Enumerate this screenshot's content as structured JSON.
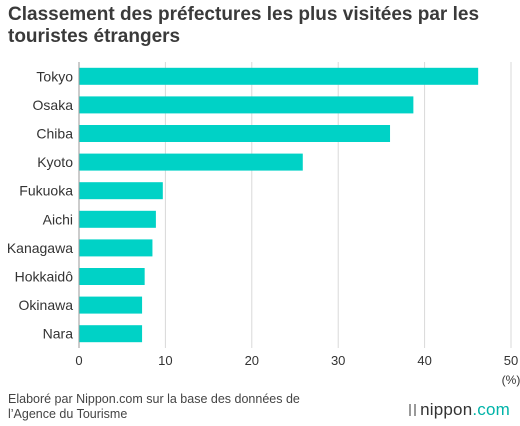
{
  "chart_data": {
    "type": "bar",
    "orientation": "horizontal",
    "title": "Classement des préfectures les plus visitées par les touristes étrangers",
    "categories": [
      "Tokyo",
      "Osaka",
      "Chiba",
      "Kyoto",
      "Fukuoka",
      "Aichi",
      "Kanagawa",
      "Hokkaidô",
      "Okinawa",
      "Nara"
    ],
    "values": [
      46.2,
      38.7,
      36.0,
      25.9,
      9.7,
      8.9,
      8.5,
      7.6,
      7.3,
      7.3
    ],
    "xlabel": "(%)",
    "ylabel": "",
    "xlim": [
      0,
      50
    ],
    "xticks": [
      0,
      10,
      20,
      30,
      40,
      50
    ],
    "grid": "vertical",
    "bar_color": "#00d2c6"
  },
  "footer": {
    "source": "Elaboré par Nippon.com sur la base des données de l’Agence du Tourisme",
    "brand_name": "nippon",
    "brand_domain": ".com"
  },
  "colors": {
    "grid": "#d9d9d9",
    "axis": "#999999",
    "text": "#333333",
    "brand_domain": "#00b3a8"
  }
}
